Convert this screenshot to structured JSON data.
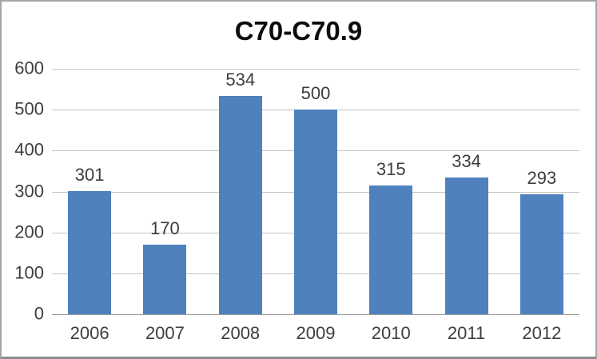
{
  "chart_data": {
    "type": "bar",
    "title": "C70-C70.9",
    "categories": [
      "2006",
      "2007",
      "2008",
      "2009",
      "2010",
      "2011",
      "2012"
    ],
    "values": [
      301,
      170,
      534,
      500,
      315,
      334,
      293
    ],
    "xlabel": "",
    "ylabel": "",
    "ylim": [
      0,
      600
    ],
    "yticks": [
      0,
      100,
      200,
      300,
      400,
      500,
      600
    ],
    "grid": "horizontal",
    "legend_position": "none",
    "colors": {
      "bar_fill": "#4f81bd",
      "gridline": "#c3c3c3",
      "axis_line": "#9a9a9a",
      "tick_label": "#3d3d3d",
      "title": "#0d0d0d",
      "frame_border": "#a6a6a6",
      "background": "#ffffff"
    }
  }
}
